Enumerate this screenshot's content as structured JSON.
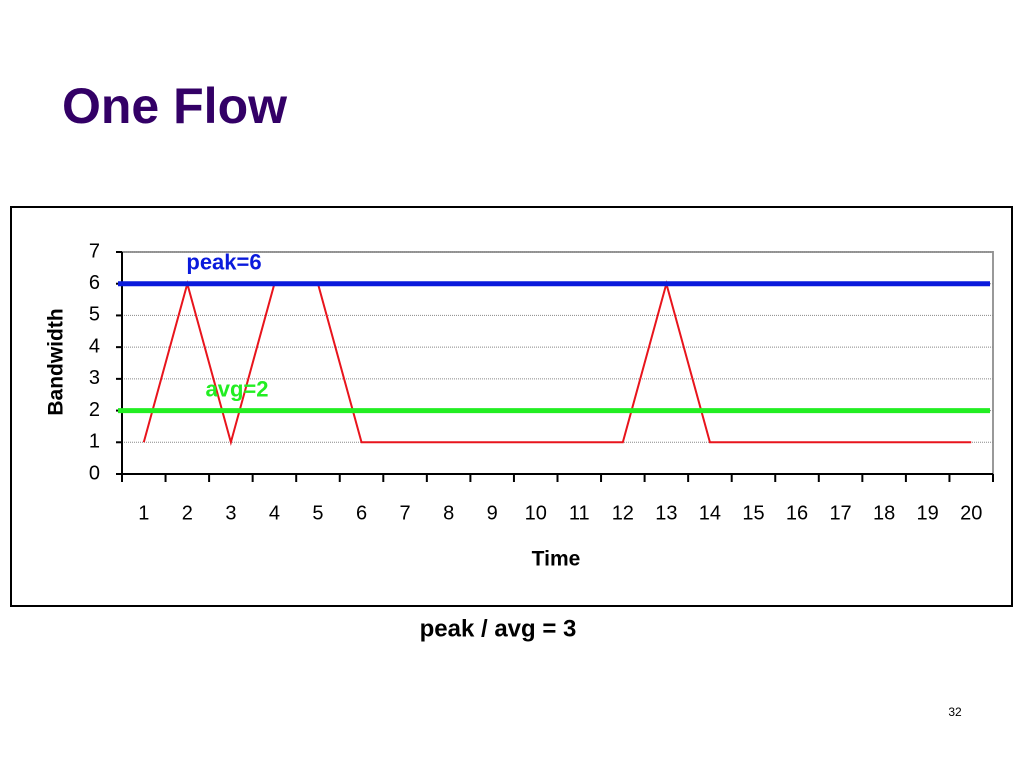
{
  "title": "One Flow",
  "chart_data": {
    "type": "line",
    "categories": [
      1,
      2,
      3,
      4,
      5,
      6,
      7,
      8,
      9,
      10,
      11,
      12,
      13,
      14,
      15,
      16,
      17,
      18,
      19,
      20
    ],
    "series": [
      {
        "color": "#e8141c",
        "values": [
          1,
          6,
          1,
          6,
          6,
          1,
          1,
          1,
          1,
          1,
          1,
          1,
          6,
          1,
          1,
          1,
          1,
          1,
          1,
          1
        ]
      }
    ],
    "reference_lines": [
      {
        "value": 6,
        "label": "peak=6",
        "color": "#0a1adc"
      },
      {
        "value": 2,
        "label": "avg=2",
        "color": "#22ee22"
      }
    ],
    "ylim": [
      0,
      7
    ],
    "yticks": [
      0,
      1,
      2,
      3,
      4,
      5,
      6,
      7
    ],
    "grid": true,
    "x_label": "Time",
    "y_label": "Bandwidth"
  },
  "caption": "peak / avg = 3",
  "page_number": "32"
}
